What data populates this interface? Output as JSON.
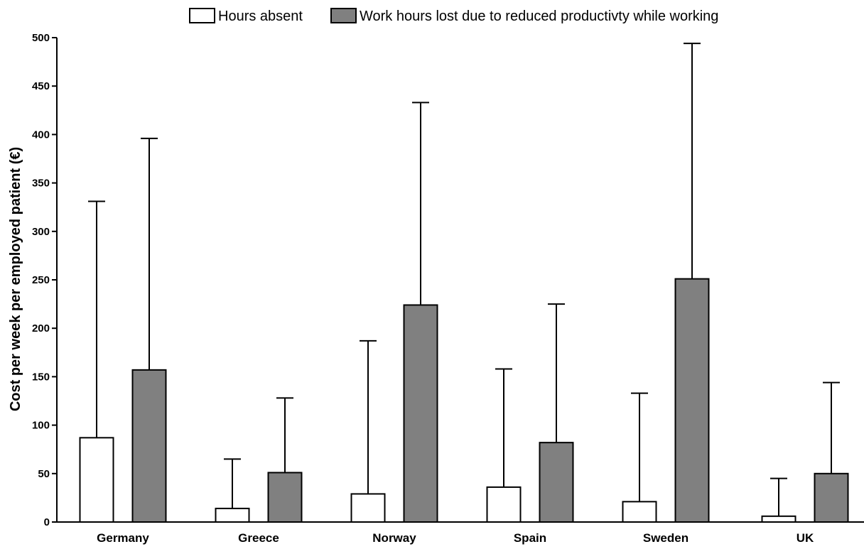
{
  "chart_data": {
    "type": "bar",
    "title": "",
    "xlabel": "",
    "ylabel": "Cost per week per employed patient (€)",
    "ylim": [
      0,
      500
    ],
    "yticks": [
      0,
      50,
      100,
      150,
      200,
      250,
      300,
      350,
      400,
      450,
      500
    ],
    "categories": [
      "Germany",
      "Greece",
      "Norway",
      "Spain",
      "Sweden",
      "UK"
    ],
    "series": [
      {
        "name": "Hours absent",
        "color": "#ffffff",
        "values": [
          87,
          14,
          29,
          36,
          21,
          6
        ],
        "error_upper": [
          331,
          65,
          187,
          158,
          133,
          45
        ]
      },
      {
        "name": "Work hours lost due to reduced productivty while working",
        "color": "#808080",
        "values": [
          157,
          51,
          224,
          82,
          251,
          50
        ],
        "error_upper": [
          396,
          128,
          433,
          225,
          494,
          144
        ]
      }
    ],
    "legend_position": "top-center",
    "grid": false
  }
}
